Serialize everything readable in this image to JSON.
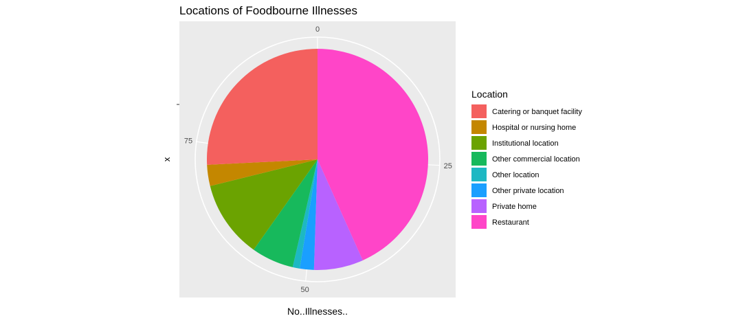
{
  "chart_data": {
    "type": "pie",
    "title": "Locations of Foodbourne Illnesses",
    "xlabel": "No..Illnesses..",
    "ylabel": "x",
    "legend_title": "Location",
    "legend_position": "right",
    "angle_ticks": [
      0,
      25,
      50,
      75
    ],
    "total": 97,
    "slices": [
      {
        "label": "Restaurant",
        "value": 42,
        "color": "#FF45C8"
      },
      {
        "label": "Private home",
        "value": 7,
        "color": "#B862FF"
      },
      {
        "label": "Other private location",
        "value": 2,
        "color": "#1A9FFF"
      },
      {
        "label": "Other location",
        "value": 1,
        "color": "#1DB8C3"
      },
      {
        "label": "Other commercial location",
        "value": 6,
        "color": "#17B95C"
      },
      {
        "label": "Institutional location",
        "value": 11,
        "color": "#6BA301"
      },
      {
        "label": "Hospital or nursing home",
        "value": 3,
        "color": "#C48700"
      },
      {
        "label": "Catering or banquet facility",
        "value": 25,
        "color": "#F4605E"
      }
    ],
    "legend_order": [
      "Catering or banquet facility",
      "Hospital or nursing home",
      "Institutional location",
      "Other commercial location",
      "Other location",
      "Other private location",
      "Private home",
      "Restaurant"
    ]
  }
}
